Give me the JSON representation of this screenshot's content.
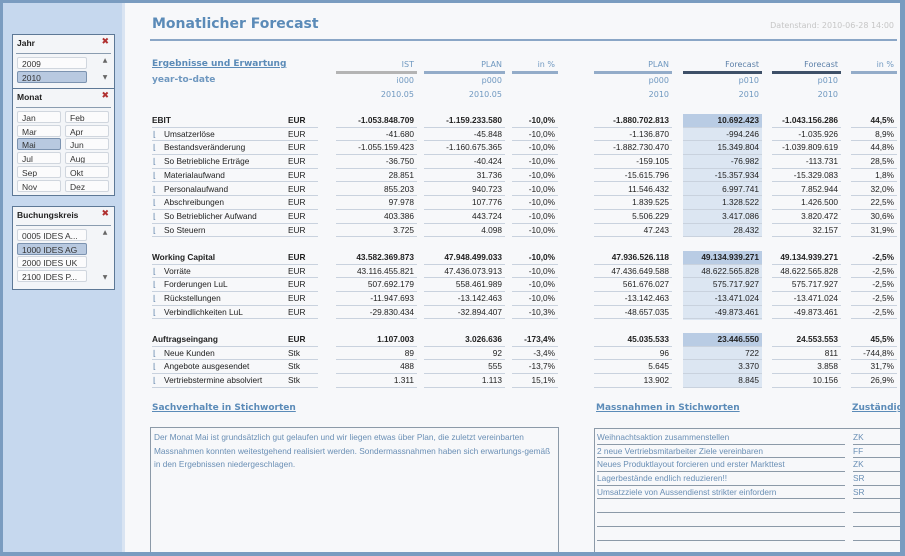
{
  "title": "Monatlicher Forecast",
  "stamp": "Datenstand: 2010-06-28 14:00",
  "sidebar": {
    "jahr": {
      "title": "Jahr",
      "items": [
        "2009",
        "2010"
      ],
      "selected": "2010"
    },
    "monat": {
      "title": "Monat",
      "items": [
        "Jan",
        "Feb",
        "Mar",
        "Apr",
        "Mai",
        "Jun",
        "Jul",
        "Aug",
        "Sep",
        "Okt",
        "Nov",
        "Dez"
      ],
      "selected": "Mai"
    },
    "buchungskreis": {
      "title": "Buchungskreis",
      "items": [
        "0005 IDES A...",
        "1000 IDES AG",
        "2000 IDES UK",
        "2100 IDES P..."
      ],
      "selected": "1000 IDES AG"
    }
  },
  "table": {
    "section_title": "Ergebnisse und Erwartung",
    "subtitle": "year-to-date",
    "columns": [
      {
        "label": "IST",
        "version": "i000",
        "period": "2010.05",
        "bar": "#b4b4b4"
      },
      {
        "label": "PLAN",
        "version": "p000",
        "period": "2010.05",
        "bar": "#93acc9"
      },
      {
        "label": "in %",
        "version": "",
        "period": "",
        "bar": "#93acc9"
      },
      {
        "label": "PLAN",
        "version": "p000",
        "period": "2010",
        "bar": "#93acc9"
      },
      {
        "label": "Forecast",
        "version": "p010",
        "period": "2010",
        "bar": "#3e5068"
      },
      {
        "label": "Forecast",
        "version": "p010",
        "period": "2010",
        "bar": "#3e5068"
      },
      {
        "label": "in %",
        "version": "",
        "period": "",
        "bar": "#93acc9"
      }
    ],
    "groups": [
      {
        "rows": [
          {
            "label": "EBIT",
            "unit": "EUR",
            "total": true,
            "values": [
              "-1.053.848.709",
              "-1.159.233.580",
              "-10,0%",
              "-1.880.702.813",
              "10.692.423",
              "-1.043.156.286",
              "44,5%"
            ]
          },
          {
            "label": "Umsatzerlöse",
            "unit": "EUR",
            "values": [
              "-41.680",
              "-45.848",
              "-10,0%",
              "-1.136.870",
              "-994.246",
              "-1.035.926",
              "8,9%"
            ]
          },
          {
            "label": "Bestandsveränderung",
            "unit": "EUR",
            "values": [
              "-1.055.159.423",
              "-1.160.675.365",
              "-10,0%",
              "-1.882.730.470",
              "15.349.804",
              "-1.039.809.619",
              "44,8%"
            ]
          },
          {
            "label": "So Betriebliche Erträge",
            "unit": "EUR",
            "values": [
              "-36.750",
              "-40.424",
              "-10,0%",
              "-159.105",
              "-76.982",
              "-113.731",
              "28,5%"
            ]
          },
          {
            "label": "Materialaufwand",
            "unit": "EUR",
            "values": [
              "28.851",
              "31.736",
              "-10,0%",
              "-15.615.796",
              "-15.357.934",
              "-15.329.083",
              "1,8%"
            ]
          },
          {
            "label": "Personalaufwand",
            "unit": "EUR",
            "values": [
              "855.203",
              "940.723",
              "-10,0%",
              "11.546.432",
              "6.997.741",
              "7.852.944",
              "32,0%"
            ]
          },
          {
            "label": "Abschreibungen",
            "unit": "EUR",
            "values": [
              "97.978",
              "107.776",
              "-10,0%",
              "1.839.525",
              "1.328.522",
              "1.426.500",
              "22,5%"
            ]
          },
          {
            "label": "So Betrieblicher Aufwand",
            "unit": "EUR",
            "values": [
              "403.386",
              "443.724",
              "-10,0%",
              "5.506.229",
              "3.417.086",
              "3.820.472",
              "30,6%"
            ]
          },
          {
            "label": "So Steuern",
            "unit": "EUR",
            "values": [
              "3.725",
              "4.098",
              "-10,0%",
              "47.243",
              "28.432",
              "32.157",
              "31,9%"
            ]
          }
        ]
      },
      {
        "rows": [
          {
            "label": "Working Capital",
            "unit": "EUR",
            "total": true,
            "values": [
              "43.582.369.873",
              "47.948.499.033",
              "-10,0%",
              "47.936.526.118",
              "49.134.939.271",
              "49.134.939.271",
              "-2,5%"
            ]
          },
          {
            "label": "Vorräte",
            "unit": "EUR",
            "values": [
              "43.116.455.821",
              "47.436.073.913",
              "-10,0%",
              "47.436.649.588",
              "48.622.565.828",
              "48.622.565.828",
              "-2,5%"
            ]
          },
          {
            "label": "Forderungen LuL",
            "unit": "EUR",
            "values": [
              "507.692.179",
              "558.461.989",
              "-10,0%",
              "561.676.027",
              "575.717.927",
              "575.717.927",
              "-2,5%"
            ]
          },
          {
            "label": "Rückstellungen",
            "unit": "EUR",
            "values": [
              "-11.947.693",
              "-13.142.463",
              "-10,0%",
              "-13.142.463",
              "-13.471.024",
              "-13.471.024",
              "-2,5%"
            ]
          },
          {
            "label": "Verbindlichkeiten LuL",
            "unit": "EUR",
            "values": [
              "-29.830.434",
              "-32.894.407",
              "-10,3%",
              "-48.657.035",
              "-49.873.461",
              "-49.873.461",
              "-2,5%"
            ]
          }
        ]
      },
      {
        "rows": [
          {
            "label": "Auftragseingang",
            "unit": "EUR",
            "total": true,
            "values": [
              "1.107.003",
              "3.026.636",
              "-173,4%",
              "45.035.533",
              "23.446.550",
              "24.553.553",
              "45,5%"
            ]
          },
          {
            "label": "Neue Kunden",
            "unit": "Stk",
            "values": [
              "89",
              "92",
              "-3,4%",
              "96",
              "722",
              "811",
              "-744,8%"
            ]
          },
          {
            "label": "Angebote ausgesendet",
            "unit": "Stk",
            "values": [
              "488",
              "555",
              "-13,7%",
              "5.645",
              "3.370",
              "3.858",
              "31,7%"
            ]
          },
          {
            "label": "Vertriebstermine absolviert",
            "unit": "Stk",
            "values": [
              "1.311",
              "1.113",
              "15,1%",
              "13.902",
              "8.845",
              "10.156",
              "26,9%"
            ]
          }
        ]
      }
    ]
  },
  "notes": {
    "title": "Sachverhalte in Stichworten",
    "text": "Der Monat Mai ist grundsätzlich gut gelaufen und wir liegen etwas über Plan, die zuletzt vereinbarten Massnahmen konnten weitestgehend realisiert werden. Sondermassnahmen haben sich erwartungs-gemäß in den Ergebnissen niedergeschlagen."
  },
  "measures": {
    "title": "Massnahmen in Stichworten",
    "owner_title": "Zuständig",
    "items": [
      {
        "text": "Weihnachtsaktion zusammenstellen",
        "owner": "ZK"
      },
      {
        "text": "2 neue Vertriebsmitarbeiter Ziele vereinbaren",
        "owner": "FF"
      },
      {
        "text": "Neues Produktlayout forcieren und erster Markttest",
        "owner": "ZK"
      },
      {
        "text": "Lagerbestände endlich reduzieren!!",
        "owner": "SR"
      },
      {
        "text": "Umsatzziele von Aussendienst strikter einfordern",
        "owner": "SR"
      },
      {
        "text": "",
        "owner": ""
      },
      {
        "text": "",
        "owner": ""
      },
      {
        "text": "",
        "owner": ""
      },
      {
        "text": "",
        "owner": ""
      }
    ]
  }
}
